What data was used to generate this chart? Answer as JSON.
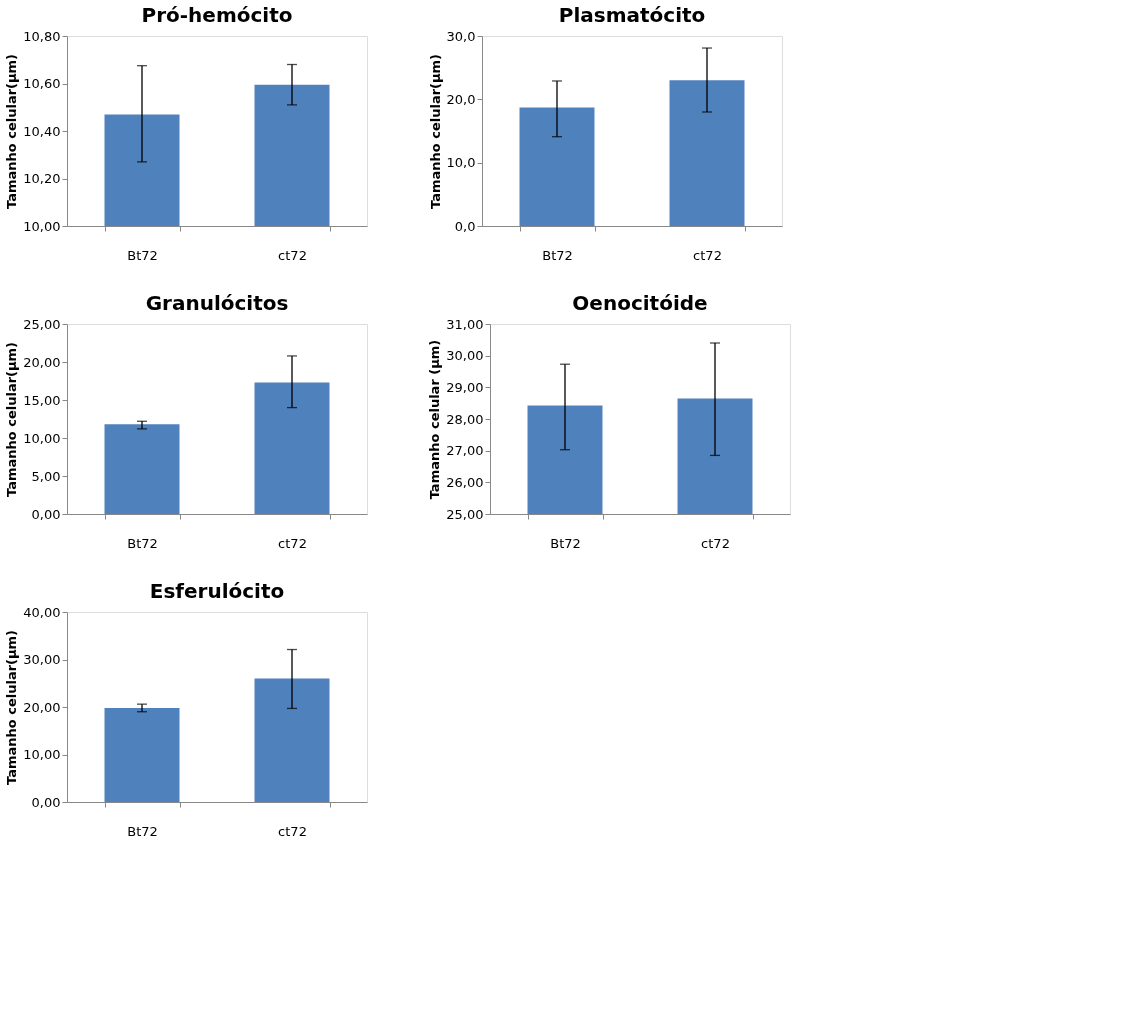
{
  "chart_data": [
    {
      "type": "bar",
      "title": "Pró-hemócito",
      "ylabel": "Tamanho celular(µm)",
      "categories": [
        "Bt72",
        "ct72"
      ],
      "values": [
        10.47,
        10.595
      ],
      "errors": [
        [
          10.27,
          10.675
        ],
        [
          10.51,
          10.68
        ]
      ],
      "color": "#4f81bd",
      "ylim": [
        10,
        10.8
      ],
      "yticks": [
        {
          "value": 10,
          "label": "10,00"
        },
        {
          "value": 10.2,
          "label": "10,20"
        },
        {
          "value": 10.4,
          "label": "10,40"
        },
        {
          "value": 10.6,
          "label": "10,60"
        },
        {
          "value": 10.8,
          "label": "10,80"
        }
      ]
    },
    {
      "type": "bar",
      "title": "Plasmatócito",
      "ylabel": "Tamanho celular(µm)",
      "categories": [
        "Bt72",
        "ct72"
      ],
      "values": [
        18.7,
        23.0
      ],
      "errors": [
        [
          14.1,
          22.9
        ],
        [
          18.0,
          28.1
        ]
      ],
      "color": "#4f81bd",
      "ylim": [
        0,
        30
      ],
      "yticks": [
        {
          "value": 0,
          "label": "0,0"
        },
        {
          "value": 10,
          "label": "10,0"
        },
        {
          "value": 20,
          "label": "20,0"
        },
        {
          "value": 30,
          "label": "30,0"
        }
      ]
    },
    {
      "type": "bar",
      "title": "Granulócitos",
      "ylabel": "Tamanho  celular(µm)",
      "categories": [
        "Bt72",
        "ct72"
      ],
      "values": [
        11.8,
        17.3
      ],
      "errors": [
        [
          11.2,
          12.2
        ],
        [
          14.0,
          20.8
        ]
      ],
      "color": "#4f81bd",
      "ylim": [
        0,
        25
      ],
      "yticks": [
        {
          "value": 0,
          "label": "0,00"
        },
        {
          "value": 5,
          "label": "5,00"
        },
        {
          "value": 10,
          "label": "10,00"
        },
        {
          "value": 15,
          "label": "15,00"
        },
        {
          "value": 20,
          "label": "20,00"
        },
        {
          "value": 25,
          "label": "25,00"
        }
      ]
    },
    {
      "type": "bar",
      "title": "Oenocitóide",
      "ylabel": "Tamanho celular (µm)",
      "categories": [
        "Bt72",
        "ct72"
      ],
      "values": [
        28.43,
        28.65
      ],
      "errors": [
        [
          27.03,
          29.73
        ],
        [
          26.85,
          30.4
        ]
      ],
      "color": "#4f81bd",
      "ylim": [
        25,
        31
      ],
      "yticks": [
        {
          "value": 25,
          "label": "25,00"
        },
        {
          "value": 26,
          "label": "26,00"
        },
        {
          "value": 27,
          "label": "27,00"
        },
        {
          "value": 28,
          "label": "28,00"
        },
        {
          "value": 29,
          "label": "29,00"
        },
        {
          "value": 30,
          "label": "30,00"
        },
        {
          "value": 31,
          "label": "31,00"
        }
      ]
    },
    {
      "type": "bar",
      "title": "Esferulócito",
      "ylabel": "Tamanho celular(µm)",
      "categories": [
        "Bt72",
        "ct72"
      ],
      "values": [
        19.8,
        26.0
      ],
      "errors": [
        [
          19.0,
          20.6
        ],
        [
          19.7,
          32.1
        ]
      ],
      "color": "#4f81bd",
      "ylim": [
        0,
        40
      ],
      "yticks": [
        {
          "value": 0,
          "label": "0,00"
        },
        {
          "value": 10,
          "label": "10,00"
        },
        {
          "value": 20,
          "label": "20,00"
        },
        {
          "value": 30,
          "label": "30,00"
        },
        {
          "value": 40,
          "label": "40,00"
        }
      ]
    }
  ]
}
